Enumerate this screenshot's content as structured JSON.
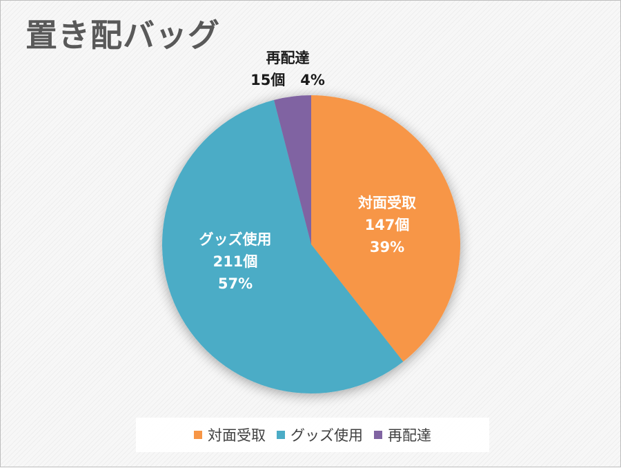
{
  "chart_data": {
    "type": "pie",
    "title": "置き配バッグ",
    "unit": "個",
    "slices": [
      {
        "label": "対面受取",
        "value": 147,
        "count_label": "147個",
        "percent_label": "39%",
        "color": "#F79646"
      },
      {
        "label": "グッズ使用",
        "value": 211,
        "count_label": "211個",
        "percent_label": "57%",
        "color": "#4BACC6"
      },
      {
        "label": "再配達",
        "value": 15,
        "count_label": "15個",
        "percent_label": "4%",
        "color": "#8064A2"
      }
    ],
    "legend_position": "bottom"
  }
}
